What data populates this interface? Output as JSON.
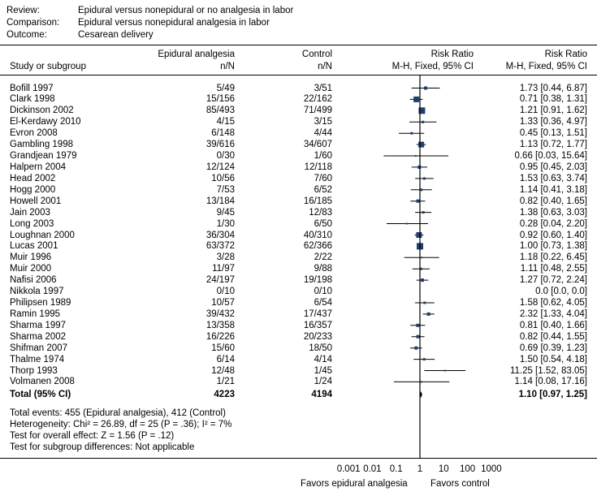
{
  "header": {
    "review_label": "Review:",
    "review_value": "Epidural versus nonepidural or no analgesia in labor",
    "comparison_label": "Comparison:",
    "comparison_value": "Epidural versus nonepidural analgesia in labor",
    "outcome_label": "Outcome:",
    "outcome_value": "Cesarean delivery"
  },
  "columns": {
    "study": "Study or subgroup",
    "epidural": "Epidural analgesia",
    "epidural_sub": "n/N",
    "control": "Control",
    "control_sub": "n/N",
    "rr_plot": "Risk Ratio",
    "rr_plot_sub": "M-H, Fixed, 95% CI",
    "rr_text": "Risk Ratio",
    "rr_text_sub": "M-H, Fixed, 95% CI"
  },
  "total": {
    "label": "Total (95% CI)",
    "epidural": "4223",
    "control": "4194",
    "rr": "1.10 [0.97, 1.25]",
    "point": 1.1,
    "lo": 0.97,
    "hi": 1.25
  },
  "footer": {
    "events": "Total events: 455 (Epidural analgesia), 412 (Control)",
    "heterogeneity": "Heterogeneity: Chi² = 26.89,  df = 25 (P = .36); I² = 7%",
    "overall": "Test for overall effect: Z = 1.56 (P = .12)",
    "subgroup": "Test for subgroup differences: Not applicable"
  },
  "axis": {
    "ticks": [
      "0.001",
      "0.01",
      "0.1",
      "1",
      "10",
      "100",
      "1000"
    ],
    "favors_left": "Favors epidural analgesia",
    "favors_right": "Favors control"
  },
  "chart_data": {
    "type": "forest",
    "x_scale": "log",
    "xlim": [
      0.001,
      1000
    ],
    "reference_line": 1,
    "studies": [
      {
        "name": "Bofill 1997",
        "epidural": "5/49",
        "control": "3/51",
        "rr": 1.73,
        "lo": 0.44,
        "hi": 6.87,
        "w": 4,
        "text": "1.73 [0.44, 6.87]"
      },
      {
        "name": "Clark 1998",
        "epidural": "15/156",
        "control": "22/162",
        "rr": 0.71,
        "lo": 0.38,
        "hi": 1.31,
        "w": 7,
        "text": "0.71 [0.38, 1.31]"
      },
      {
        "name": "Dickinson 2002",
        "epidural": "85/493",
        "control": "71/499",
        "rr": 1.21,
        "lo": 0.91,
        "hi": 1.62,
        "w": 8,
        "text": "1.21 [0.91, 1.62]"
      },
      {
        "name": "El-Kerdawy 2010",
        "epidural": "4/15",
        "control": "3/15",
        "rr": 1.33,
        "lo": 0.36,
        "hi": 4.97,
        "w": 3,
        "text": "1.33 [0.36, 4.97]"
      },
      {
        "name": "Evron 2008",
        "epidural": "6/148",
        "control": "4/44",
        "rr": 0.45,
        "lo": 0.13,
        "hi": 1.51,
        "w": 3,
        "text": "0.45 [0.13, 1.51]"
      },
      {
        "name": "Gambling 1998",
        "epidural": "39/616",
        "control": "34/607",
        "rr": 1.13,
        "lo": 0.72,
        "hi": 1.77,
        "w": 7,
        "text": "1.13 [0.72, 1.77]"
      },
      {
        "name": "Grandjean 1979",
        "epidural": "0/30",
        "control": "1/60",
        "rr": 0.66,
        "lo": 0.03,
        "hi": 15.64,
        "w": 2,
        "text": "0.66 [0.03, 15.64]"
      },
      {
        "name": "Halpern 2004",
        "epidural": "12/124",
        "control": "12/118",
        "rr": 0.95,
        "lo": 0.45,
        "hi": 2.03,
        "w": 4,
        "text": "0.95 [0.45, 2.03]"
      },
      {
        "name": "Head 2002",
        "epidural": "10/56",
        "control": "7/60",
        "rr": 1.53,
        "lo": 0.63,
        "hi": 3.74,
        "w": 3,
        "text": "1.53 [0.63, 3.74]"
      },
      {
        "name": "Hogg 2000",
        "epidural": "7/53",
        "control": "6/52",
        "rr": 1.14,
        "lo": 0.41,
        "hi": 3.18,
        "w": 3,
        "text": "1.14 [0.41, 3.18]"
      },
      {
        "name": "Howell 2001",
        "epidural": "13/184",
        "control": "16/185",
        "rr": 0.82,
        "lo": 0.4,
        "hi": 1.65,
        "w": 4,
        "text": "0.82 [0.40, 1.65]"
      },
      {
        "name": "Jain 2003",
        "epidural": "9/45",
        "control": "12/83",
        "rr": 1.38,
        "lo": 0.63,
        "hi": 3.03,
        "w": 3,
        "text": "1.38 [0.63, 3.03]"
      },
      {
        "name": "Long 2003",
        "epidural": "1/30",
        "control": "6/50",
        "rr": 0.28,
        "lo": 0.04,
        "hi": 2.2,
        "w": 2,
        "text": "0.28 [0.04, 2.20]"
      },
      {
        "name": "Loughnan 2000",
        "epidural": "36/304",
        "control": "40/310",
        "rr": 0.92,
        "lo": 0.6,
        "hi": 1.4,
        "w": 7,
        "text": "0.92 [0.60, 1.40]"
      },
      {
        "name": "Lucas 2001",
        "epidural": "63/372",
        "control": "62/366",
        "rr": 1.0,
        "lo": 0.73,
        "hi": 1.38,
        "w": 8,
        "text": "1.00 [0.73, 1.38]"
      },
      {
        "name": "Muir 1996",
        "epidural": "3/28",
        "control": "2/22",
        "rr": 1.18,
        "lo": 0.22,
        "hi": 6.45,
        "w": 2,
        "text": "1.18 [0.22, 6.45]"
      },
      {
        "name": "Muir 2000",
        "epidural": "11/97",
        "control": "9/88",
        "rr": 1.11,
        "lo": 0.48,
        "hi": 2.55,
        "w": 3,
        "text": "1.11 [0.48, 2.55]"
      },
      {
        "name": "Nafisi 2006",
        "epidural": "24/197",
        "control": "19/198",
        "rr": 1.27,
        "lo": 0.72,
        "hi": 2.24,
        "w": 4,
        "text": "1.27 [0.72, 2.24]"
      },
      {
        "name": "Nikkola 1997",
        "epidural": "0/10",
        "control": "0/10",
        "rr": null,
        "lo": null,
        "hi": null,
        "w": 0,
        "text": "0.0 [0.0, 0.0]"
      },
      {
        "name": "Philipsen 1989",
        "epidural": "10/57",
        "control": "6/54",
        "rr": 1.58,
        "lo": 0.62,
        "hi": 4.05,
        "w": 3,
        "text": "1.58 [0.62, 4.05]"
      },
      {
        "name": "Ramin 1995",
        "epidural": "39/432",
        "control": "17/437",
        "rr": 2.32,
        "lo": 1.33,
        "hi": 4.04,
        "w": 4,
        "text": "2.32 [1.33, 4.04]"
      },
      {
        "name": "Sharma 1997",
        "epidural": "13/358",
        "control": "16/357",
        "rr": 0.81,
        "lo": 0.4,
        "hi": 1.66,
        "w": 4,
        "text": "0.81 [0.40, 1.66]"
      },
      {
        "name": "Sharma 2002",
        "epidural": "16/226",
        "control": "20/233",
        "rr": 0.82,
        "lo": 0.44,
        "hi": 1.55,
        "w": 4,
        "text": "0.82 [0.44, 1.55]"
      },
      {
        "name": "Shifman 2007",
        "epidural": "15/60",
        "control": "18/50",
        "rr": 0.69,
        "lo": 0.39,
        "hi": 1.23,
        "w": 4,
        "text": "0.69 [0.39, 1.23]"
      },
      {
        "name": "Thalme 1974",
        "epidural": "6/14",
        "control": "4/14",
        "rr": 1.5,
        "lo": 0.54,
        "hi": 4.18,
        "w": 3,
        "text": "1.50 [0.54, 4.18]"
      },
      {
        "name": "Thorp 1993",
        "epidural": "12/48",
        "control": "1/45",
        "rr": 11.25,
        "lo": 1.52,
        "hi": 83.05,
        "w": 2,
        "text": "11.25 [1.52, 83.05]"
      },
      {
        "name": "Volmanen 2008",
        "epidural": "1/21",
        "control": "1/24",
        "rr": 1.14,
        "lo": 0.08,
        "hi": 17.16,
        "w": 2,
        "text": "1.14 [0.08, 17.16]"
      }
    ],
    "marker_color": "#1f3f6e"
  }
}
